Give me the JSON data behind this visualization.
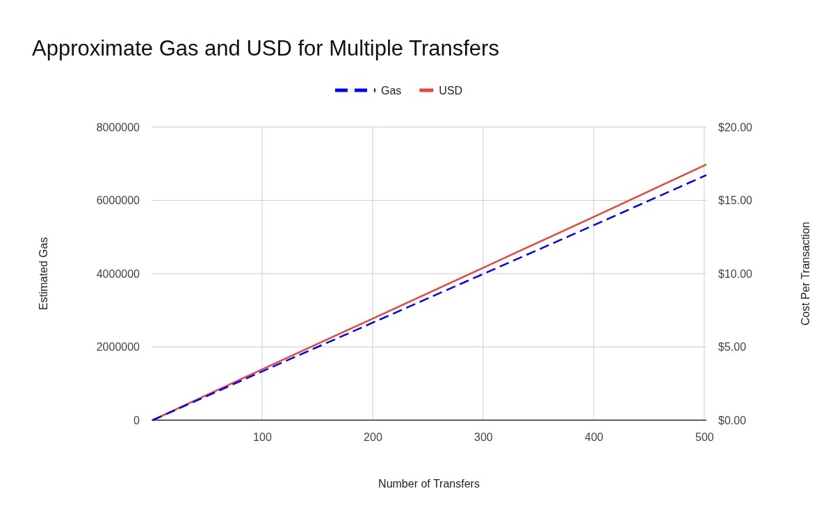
{
  "chart_data": {
    "type": "line",
    "title": "Approximate Gas and USD for Multiple Transfers",
    "xlabel": "Number of Transfers",
    "ylabel": "Estimated Gas",
    "y2label": "Cost Per Transaction",
    "series": [
      {
        "name": "Gas",
        "color": "#0000ff",
        "line_style": "dashed",
        "x": [
          1,
          100,
          200,
          300,
          400,
          502
        ],
        "values": [
          0,
          1330000,
          2660000,
          3990000,
          5320000,
          6690000
        ]
      },
      {
        "name": "USD",
        "color": "#e8453c",
        "line_style": "solid",
        "axis": "y2",
        "x": [
          1,
          100,
          200,
          300,
          400,
          502
        ],
        "values": [
          0,
          3.47,
          6.93,
          10.4,
          13.87,
          17.45
        ]
      }
    ],
    "xlim": [
      0,
      502
    ],
    "xticks": [
      100,
      200,
      300,
      400,
      500
    ],
    "ylim": [
      0,
      8000000
    ],
    "yticks": [
      0,
      2000000,
      4000000,
      6000000,
      8000000
    ],
    "y2lim": [
      0,
      20
    ],
    "y2ticks": [
      {
        "value": 0,
        "label": "$0.00"
      },
      {
        "value": 5,
        "label": "$5.00"
      },
      {
        "value": 10,
        "label": "$10.00"
      },
      {
        "value": 15,
        "label": "$15.00"
      },
      {
        "value": 20,
        "label": "$20.00"
      }
    ],
    "grid": true,
    "legend": "top",
    "marker": "none"
  }
}
